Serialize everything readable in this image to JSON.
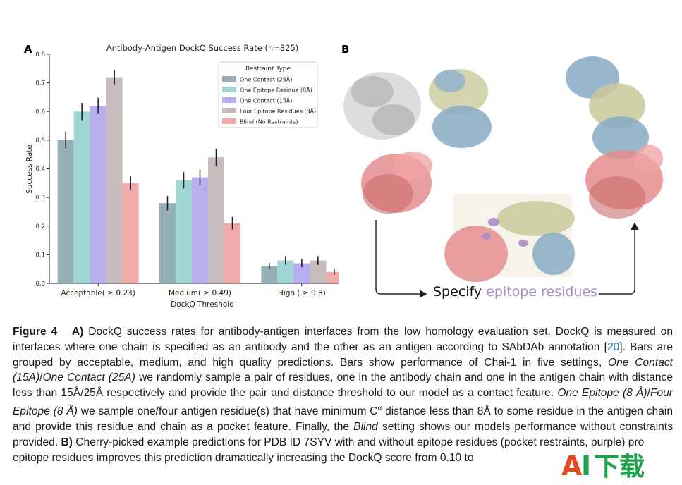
{
  "panel_labels": {
    "a": "A",
    "b": "B"
  },
  "chart_data": {
    "type": "bar",
    "title": "Antibody-Antigen DockQ Success Rate (n=325)",
    "xlabel": "DockQ Threshold",
    "ylabel": "Success Rate",
    "ylim": [
      0,
      0.8
    ],
    "yticks": [
      "0.0",
      "0.1",
      "0.2",
      "0.3",
      "0.4",
      "0.5",
      "0.6",
      "0.7",
      "0.8"
    ],
    "categories": [
      "Acceptable( ≥ 0.23)",
      "Medium( ≥ 0.49)",
      "High ( ≥ 0.8)"
    ],
    "legend_title": "Restraint Type",
    "legend_position": "top-right",
    "grid": false,
    "series": [
      {
        "name": "One Contact (25Å)",
        "color": "#96aeb8",
        "values": [
          0.5,
          0.28,
          0.06
        ],
        "err": [
          0.03,
          0.025,
          0.012
        ]
      },
      {
        "name": "One Epitope Residue (8Å)",
        "color": "#9fd5d2",
        "values": [
          0.6,
          0.36,
          0.08
        ],
        "err": [
          0.03,
          0.028,
          0.015
        ]
      },
      {
        "name": "One Contact (15Å)",
        "color": "#b7aeef",
        "values": [
          0.62,
          0.37,
          0.07
        ],
        "err": [
          0.028,
          0.028,
          0.014
        ]
      },
      {
        "name": "Four Epitope Residues (8Å)",
        "color": "#c8bcbd",
        "values": [
          0.72,
          0.44,
          0.08
        ],
        "err": [
          0.025,
          0.03,
          0.015
        ]
      },
      {
        "name": "Blind (No Restraints)",
        "color": "#f4abab",
        "values": [
          0.35,
          0.21,
          0.04
        ],
        "err": [
          0.025,
          0.022,
          0.01
        ]
      }
    ]
  },
  "panel_b": {
    "specify_prefix": "Specify",
    "specify_highlight": "epitope residues",
    "colors": {
      "antibody_light": "#c9c99a",
      "antibody_heavy": "#86aac4",
      "antigen": "#e48d8d",
      "blind_chain": "#b8b8b8"
    }
  },
  "caption": {
    "label": "Figure 4",
    "a_label": "A)",
    "p1": " DockQ success rates for antibody-antigen interfaces from the low homology evaluation set.  DockQ is measured on interfaces where one chain is specified as an antibody and the other as an antigen according to SAbDAb annotation [",
    "ref": "20",
    "p2": "]. Bars are grouped by acceptable, medium, and high quality predictions. Bars show performance of Chai-1 in five settings, ",
    "i1": "One Contact (15A)",
    "slash1": "/",
    "i2": "One Contact (25A)",
    "p3": " we randomly sample a pair of residues, one in the antibody chain and one in the antigen chain with distance less than 15Å/25Å respectively and provide the pair and distance threshold to our model as a contact feature. ",
    "i3": "One Epitope (8 Å)",
    "slash2": "/",
    "i4": "Four Epitope (8 Å)",
    "p4": " we sample one/four antigen residue(s) that have minimum C",
    "alpha": "α",
    "p5": " distance less than 8Å to some residue in the antigen chain and provide this residue and chain as a pocket feature. Finally, the ",
    "i5": "Blind",
    "p6": " setting shows our models performance without constraints provided. ",
    "b_label": "B)",
    "p7": " Cherry-picked example predictions for PDB ID 7SYV with and without epitope residues (pocket restraints, purple) pro",
    "p8": "epitope residues improves this prediction dramatically increasing the DockQ score from 0.10 to"
  },
  "watermark": {
    "text_a": "A",
    "text_i": "I",
    "text_cn": "下载",
    "colors": {
      "a": "#e5471f",
      "i": "#1aa34a",
      "cn": "#1aa34a"
    }
  }
}
